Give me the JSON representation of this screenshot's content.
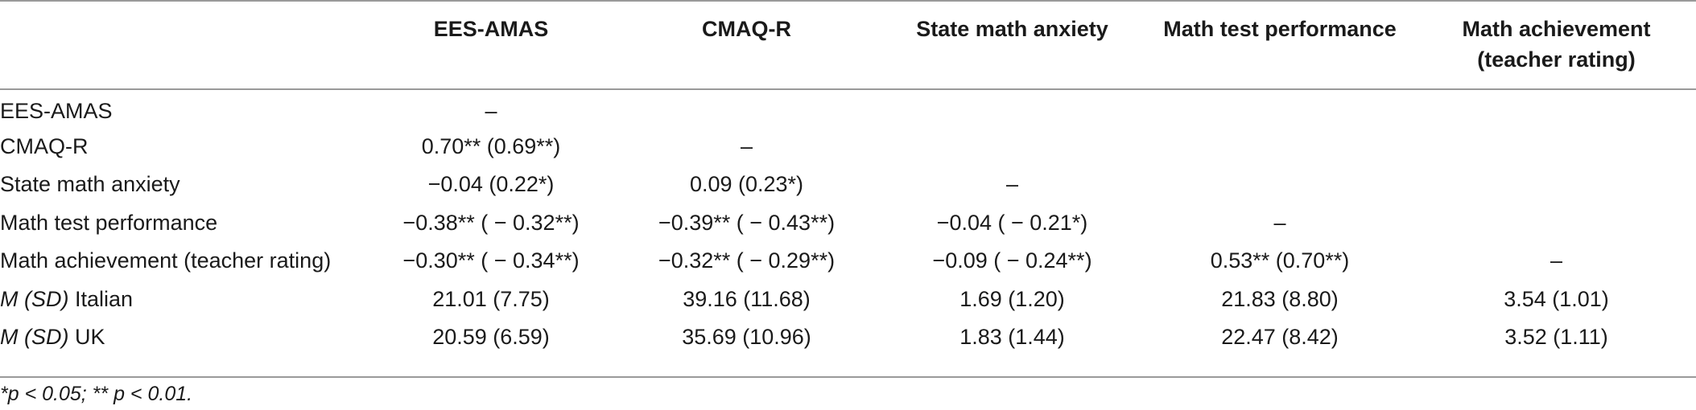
{
  "columns": [
    "",
    "EES-AMAS",
    "CMAQ-R",
    "State math anxiety",
    "Math test performance",
    "Math achievement (teacher rating)"
  ],
  "rows": [
    {
      "label": "EES-AMAS",
      "cells": [
        "–",
        "",
        "",
        "",
        ""
      ]
    },
    {
      "label": "CMAQ-R",
      "cells": [
        "0.70** (0.69**)",
        "–",
        "",
        "",
        ""
      ]
    },
    {
      "label": "State math anxiety",
      "cells": [
        "−0.04 (0.22*)",
        "0.09 (0.23*)",
        "–",
        "",
        ""
      ]
    },
    {
      "label": "Math test performance",
      "cells": [
        "−0.38** ( − 0.32**)",
        "−0.39** ( − 0.43**)",
        "−0.04 ( − 0.21*)",
        "–",
        ""
      ]
    },
    {
      "label": "Math achievement (teacher rating)",
      "cells": [
        "−0.30** ( − 0.34**)",
        "−0.32** ( − 0.29**)",
        "−0.09 ( − 0.24**)",
        "0.53** (0.70**)",
        "–"
      ]
    },
    {
      "label_prefix": "M (SD)",
      "label": "Italian",
      "cells": [
        "21.01 (7.75)",
        "39.16 (11.68)",
        "1.69 (1.20)",
        "21.83 (8.80)",
        "3.54 (1.01)"
      ]
    },
    {
      "label_prefix": "M (SD)",
      "label": "UK",
      "cells": [
        "20.59 (6.59)",
        "35.69 (10.96)",
        "1.83 (1.44)",
        "22.47 (8.42)",
        "3.52 (1.11)"
      ]
    }
  ],
  "footnote": "*p < 0.05; ** p < 0.01."
}
